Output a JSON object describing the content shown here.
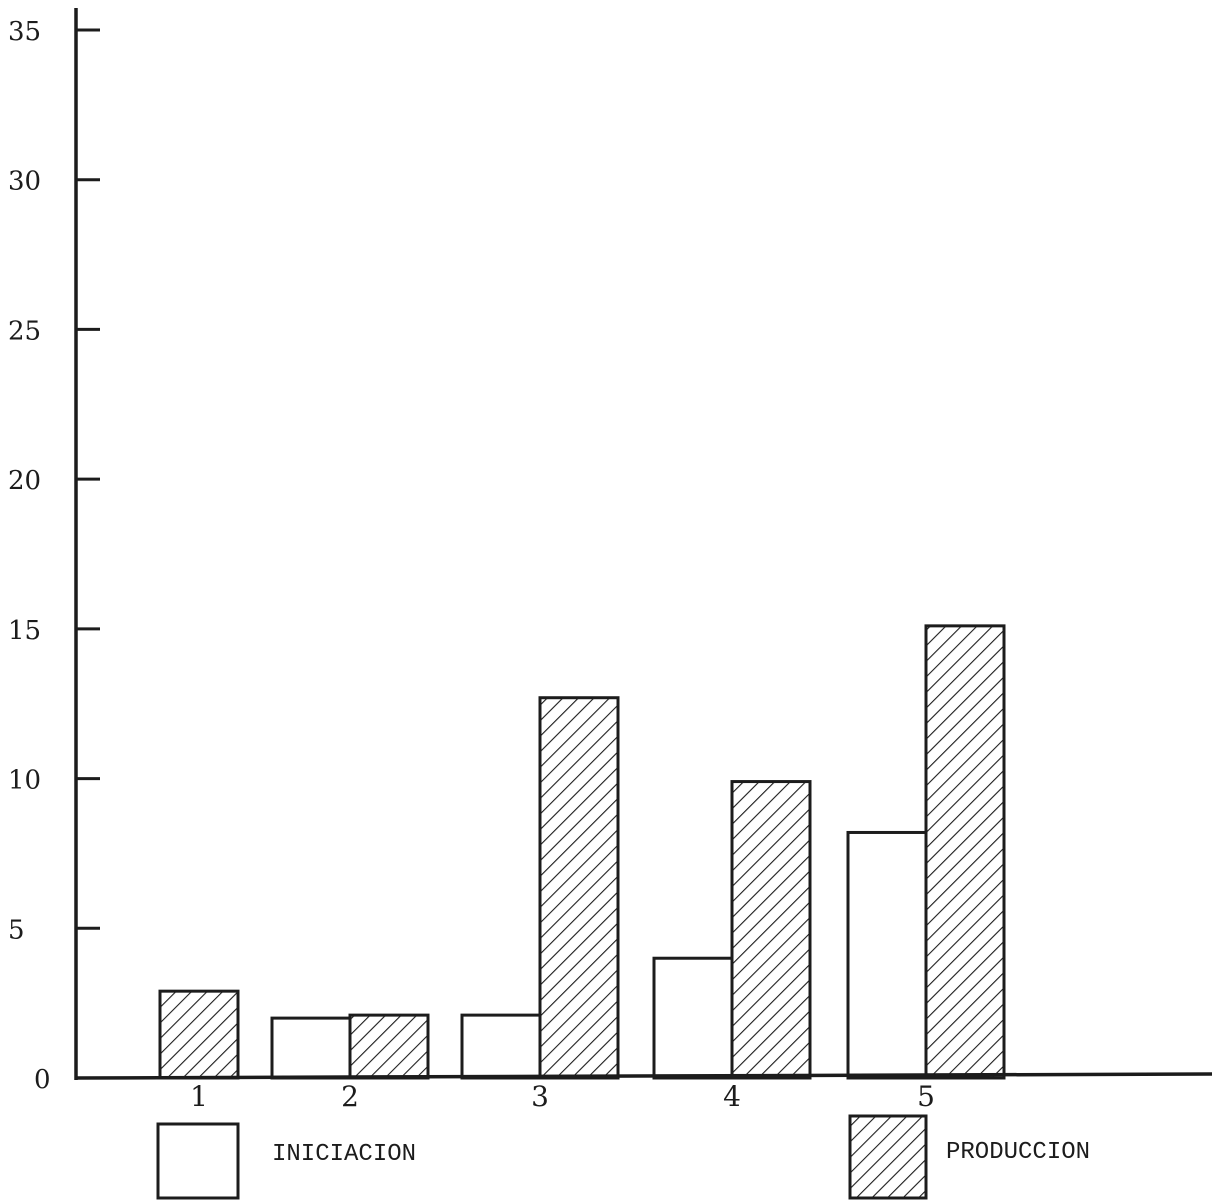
{
  "chart_data": {
    "type": "bar",
    "categories": [
      "1",
      "2",
      "3",
      "4",
      "5"
    ],
    "series": [
      {
        "name": "INICIACION",
        "values": [
          0,
          2,
          2.1,
          4,
          8.2
        ],
        "fill": "none"
      },
      {
        "name": "PRODUCCION",
        "values": [
          2.9,
          2.1,
          12.7,
          9.9,
          15.1
        ],
        "fill": "hatched"
      }
    ],
    "ylim": [
      0,
      35
    ],
    "yticks": [
      0,
      5,
      10,
      15,
      20,
      25,
      30,
      35
    ],
    "ytick_labels": [
      "0",
      "5",
      "10",
      "15",
      "20",
      "25",
      "30",
      "35"
    ],
    "legend_position": "bottom",
    "grid": false,
    "colors": {
      "ink": "#1c1c1c",
      "paper": "#ffffff"
    }
  }
}
